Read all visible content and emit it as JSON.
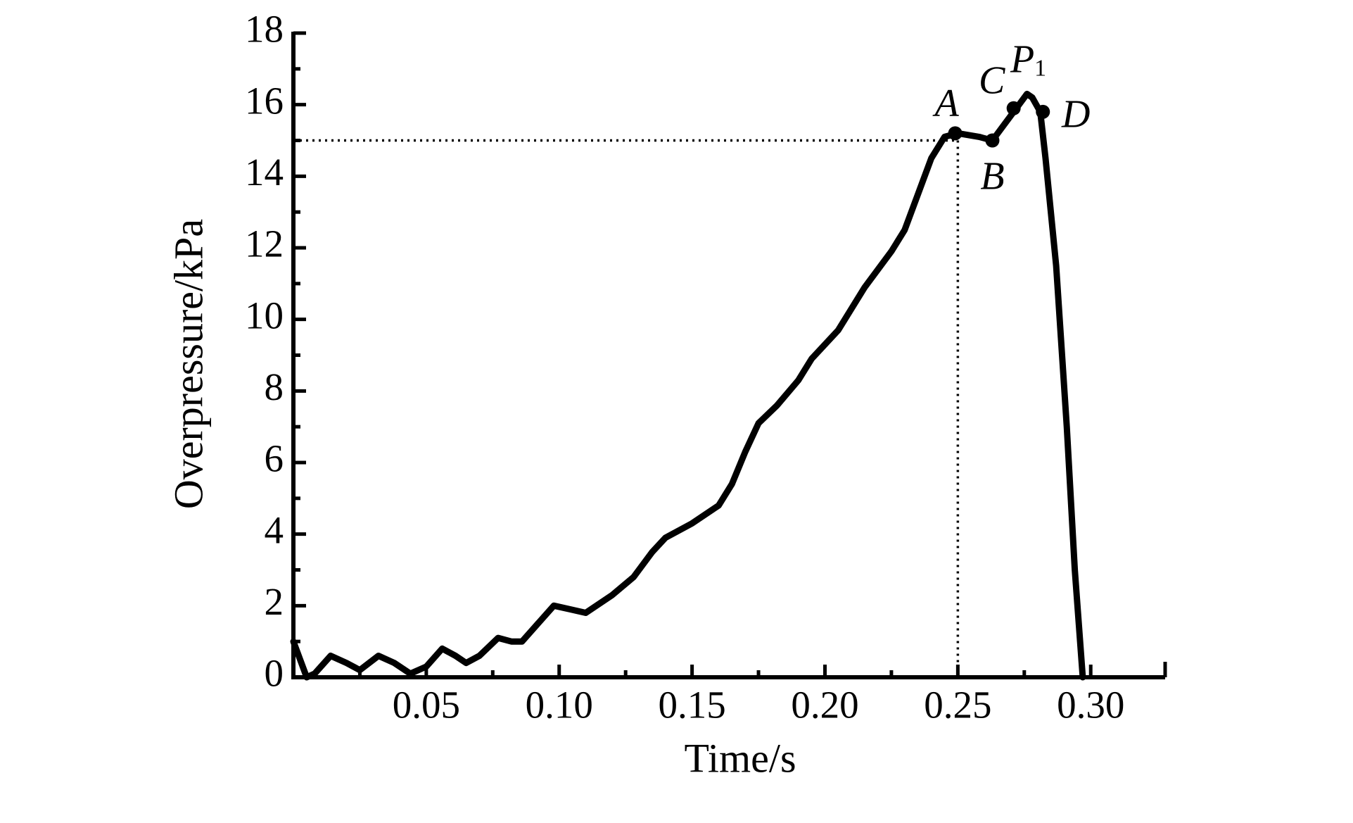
{
  "chart_data": {
    "type": "line",
    "xlabel": "Time/s",
    "ylabel": "Overpressure/kPa",
    "color": "#000000",
    "x": [
      0,
      0.005,
      0.008,
      0.014,
      0.02,
      0.025,
      0.032,
      0.038,
      0.044,
      0.05,
      0.056,
      0.061,
      0.065,
      0.07,
      0.077,
      0.082,
      0.086,
      0.092,
      0.098,
      0.104,
      0.11,
      0.12,
      0.128,
      0.135,
      0.14,
      0.15,
      0.16,
      0.165,
      0.17,
      0.175,
      0.182,
      0.19,
      0.195,
      0.205,
      0.215,
      0.225,
      0.23,
      0.235,
      0.24,
      0.245,
      0.25,
      0.258,
      0.263,
      0.268,
      0.272,
      0.276,
      0.278,
      0.281,
      0.283,
      0.287,
      0.291,
      0.294,
      0.297
    ],
    "values": [
      1.0,
      0,
      0.1,
      0.6,
      0.4,
      0.2,
      0.6,
      0.4,
      0.1,
      0.3,
      0.8,
      0.6,
      0.4,
      0.6,
      1.1,
      1.0,
      1.0,
      1.5,
      2.0,
      1.9,
      1.8,
      2.3,
      2.8,
      3.5,
      3.9,
      4.3,
      4.8,
      5.4,
      6.3,
      7.1,
      7.6,
      8.3,
      8.9,
      9.7,
      10.9,
      11.9,
      12.5,
      13.5,
      14.5,
      15.1,
      15.2,
      15.1,
      15.0,
      15.5,
      15.9,
      16.3,
      16.2,
      15.8,
      14.5,
      11.5,
      7,
      3,
      0
    ],
    "xlim": [
      0,
      0.328
    ],
    "ylim": [
      0,
      18
    ],
    "xticks": [
      0.05,
      {
        "value": 0.1,
        "label": "0.10"
      },
      0.15,
      {
        "value": 0.2,
        "label": "0.20"
      },
      0.25,
      {
        "value": 0.3,
        "label": "0.30"
      }
    ],
    "xminor": [
      0.025,
      0.075,
      0.125,
      0.175,
      0.225,
      0.275
    ],
    "yticks": [
      0,
      2,
      4,
      6,
      8,
      10,
      12,
      14,
      16,
      18
    ],
    "yminor": [
      1,
      3,
      5,
      7,
      9,
      11,
      13,
      15,
      17
    ],
    "reference": {
      "x": 0.25,
      "y": 15
    },
    "points": [
      {
        "label": "A",
        "x": 0.249,
        "y": 15.2
      },
      {
        "label": "B",
        "x": 0.263,
        "y": 15.0
      },
      {
        "label": "C",
        "x": 0.271,
        "y": 15.9
      },
      {
        "label": "D",
        "x": 0.282,
        "y": 15.8
      }
    ],
    "peak": {
      "label": "P",
      "sub": "1",
      "x": 0.276,
      "y": 16.3
    }
  }
}
